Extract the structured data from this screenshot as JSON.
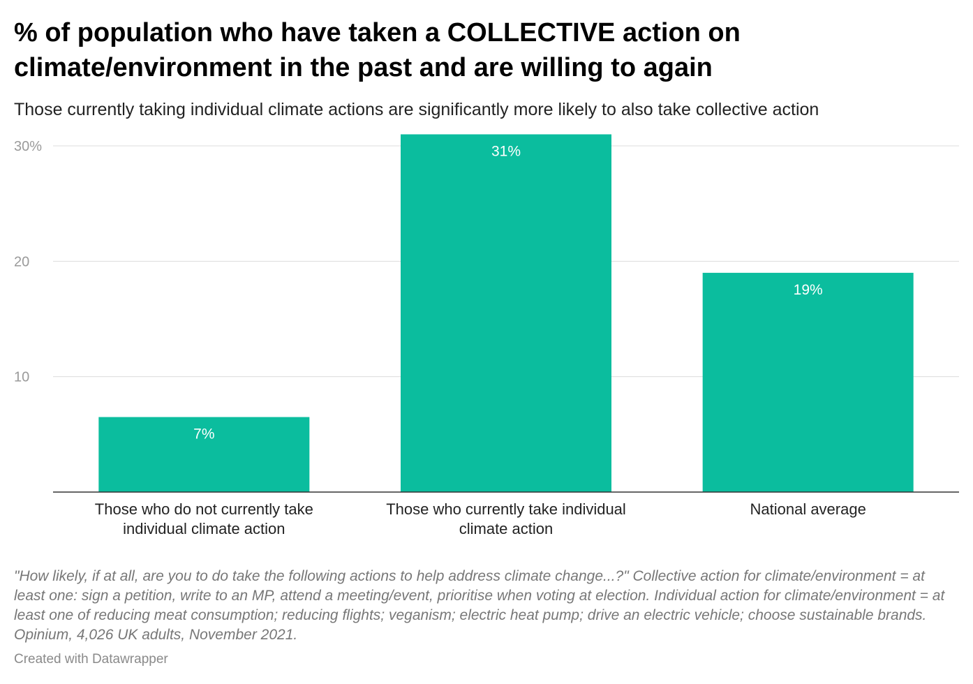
{
  "chart_data": {
    "type": "bar",
    "title": "% of population who have taken a COLLECTIVE action on climate/environment in the past and are willing to again",
    "subtitle": "Those currently taking individual climate actions are significantly more likely to also take collective action",
    "categories": [
      "Those who do not currently take individual climate action",
      "Those who currently take individual climate action",
      "National average"
    ],
    "values": [
      6.5,
      31,
      19
    ],
    "data_labels": [
      "7%",
      "31%",
      "19%"
    ],
    "y_ticks": [
      {
        "value": 10,
        "label": "10"
      },
      {
        "value": 20,
        "label": "20"
      },
      {
        "value": 30,
        "label": "30%"
      }
    ],
    "ylim": [
      0,
      31
    ],
    "grid": true,
    "bar_color": "#0bbd9e"
  },
  "notes": "\"How likely, if at all, are you to do take the following actions to help address climate change...?\" Collective action for climate/environment = at least one: sign a petition, write to an MP, attend a meeting/event, prioritise when voting at election. Individual action for climate/environment = at least one of reducing meat consumption; reducing flights; veganism; electric heat pump; drive an electric vehicle; choose sustainable brands. Opinium, 4,026 UK adults, November 2021.",
  "credit": "Created with Datawrapper"
}
